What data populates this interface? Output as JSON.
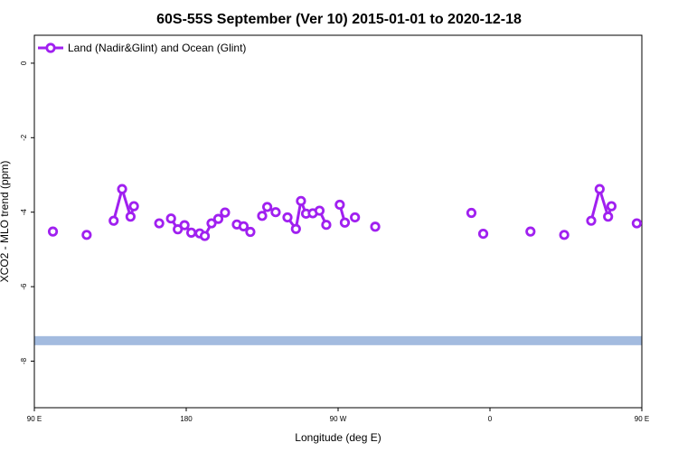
{
  "chart_data": {
    "type": "line",
    "title": "60S-55S September (Ver 10)   2015-01-01 to 2020-12-18",
    "xlabel": "Longitude (deg E)",
    "ylabel": "XCO2 - MLO trend (ppm)",
    "xlim": [
      90,
      450
    ],
    "ylim": [
      -9.25,
      0.75
    ],
    "x_ticks": [
      {
        "value": 90,
        "label": "90 E"
      },
      {
        "value": 180,
        "label": "180"
      },
      {
        "value": 270,
        "label": "90 W"
      },
      {
        "value": 360,
        "label": "0"
      },
      {
        "value": 450,
        "label": "90 E"
      },
      {
        "value": 540,
        "label": "180"
      }
    ],
    "y_ticks": [
      {
        "value": 0,
        "label": "0"
      },
      {
        "value": -2,
        "label": "-2"
      },
      {
        "value": -4,
        "label": "-4"
      },
      {
        "value": -6,
        "label": "-6"
      },
      {
        "value": -8,
        "label": "-8"
      }
    ],
    "legend_position": "top-left",
    "band": {
      "y": -7.45,
      "color": "#a3bbdf"
    },
    "series": [
      {
        "name": "Land (Nadir&Glint) and Ocean (Glint)",
        "color": "#a020f0",
        "segments": [
          [
            {
              "x": 101,
              "y": -4.52
            }
          ],
          [
            {
              "x": 121,
              "y": -4.61
            }
          ],
          [
            {
              "x": 137,
              "y": -4.23
            },
            {
              "x": 142,
              "y": -3.38
            },
            {
              "x": 147,
              "y": -4.12
            },
            {
              "x": 149,
              "y": -3.84
            }
          ],
          [
            {
              "x": 164,
              "y": -4.3
            }
          ],
          [
            {
              "x": 171,
              "y": -4.17
            },
            {
              "x": 175,
              "y": -4.46
            }
          ],
          [
            {
              "x": 179,
              "y": -4.35
            },
            {
              "x": 183,
              "y": -4.55
            }
          ],
          [
            {
              "x": 188,
              "y": -4.57
            },
            {
              "x": 191,
              "y": -4.64
            },
            {
              "x": 195,
              "y": -4.3
            },
            {
              "x": 199,
              "y": -4.18
            },
            {
              "x": 203,
              "y": -4.01
            }
          ],
          [
            {
              "x": 210,
              "y": -4.33
            },
            {
              "x": 214,
              "y": -4.38
            },
            {
              "x": 218,
              "y": -4.53
            }
          ],
          [
            {
              "x": 225,
              "y": -4.1
            },
            {
              "x": 228,
              "y": -3.86
            },
            {
              "x": 233,
              "y": -4.0
            }
          ],
          [
            {
              "x": 240,
              "y": -4.14
            },
            {
              "x": 245,
              "y": -4.45
            },
            {
              "x": 248,
              "y": -3.7
            },
            {
              "x": 251,
              "y": -4.04
            },
            {
              "x": 255,
              "y": -4.03
            },
            {
              "x": 259,
              "y": -3.96
            },
            {
              "x": 263,
              "y": -4.34
            }
          ],
          [
            {
              "x": 271,
              "y": -3.8
            },
            {
              "x": 274,
              "y": -4.28
            }
          ],
          [
            {
              "x": 280,
              "y": -4.14
            }
          ],
          [
            {
              "x": 292,
              "y": -4.39
            }
          ],
          [
            {
              "x": 349,
              "y": -4.02
            }
          ],
          [
            {
              "x": 356,
              "y": -4.58
            }
          ],
          [
            {
              "x": 384,
              "y": -4.52
            }
          ],
          [
            {
              "x": 404,
              "y": -4.61
            }
          ],
          [
            {
              "x": 420,
              "y": -4.23
            },
            {
              "x": 425,
              "y": -3.38
            },
            {
              "x": 430,
              "y": -4.12
            },
            {
              "x": 432,
              "y": -3.84
            }
          ],
          [
            {
              "x": 447,
              "y": -4.3
            }
          ]
        ]
      }
    ]
  }
}
